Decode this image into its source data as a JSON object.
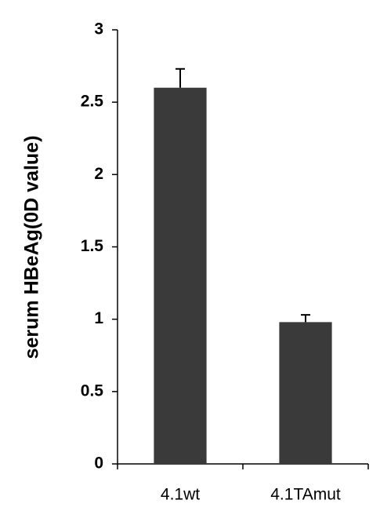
{
  "chart_data": {
    "type": "bar",
    "y_label": "serum HBeAg(0D value)",
    "categories": [
      "4.1wt",
      "4.1TAmut"
    ],
    "values": [
      2.6,
      0.98
    ],
    "errors": [
      0.13,
      0.05
    ],
    "color": "#3a3a3a",
    "ylim": [
      0,
      3
    ],
    "yticks": [
      0,
      0.5,
      1,
      1.5,
      2,
      2.5,
      3
    ],
    "grid": false
  }
}
